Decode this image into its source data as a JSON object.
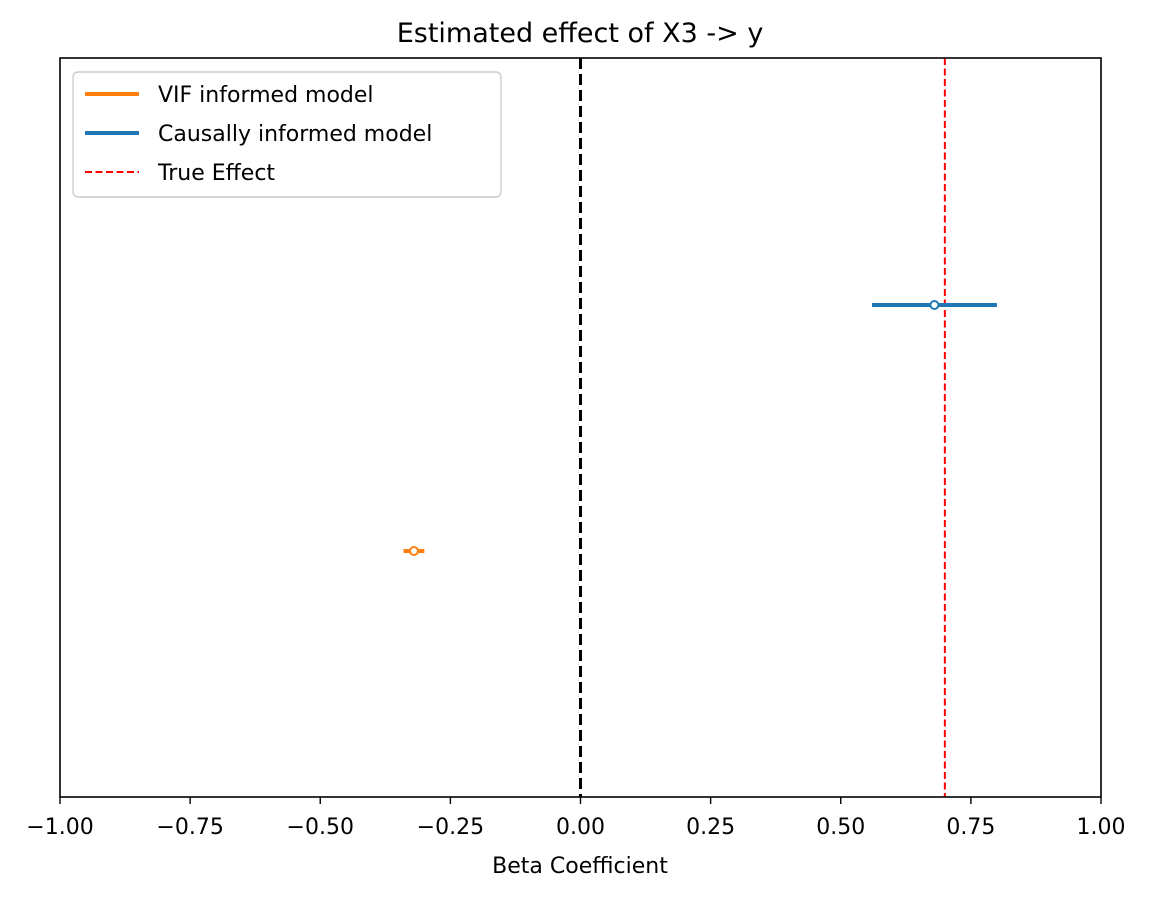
{
  "chart_data": {
    "type": "forest",
    "title": "Estimated effect of X3 -> y",
    "xlabel": "Beta Coefficient",
    "ylabel": "",
    "xlim": [
      -1.0,
      1.0
    ],
    "xticks": [
      -1.0,
      -0.75,
      -0.5,
      -0.25,
      0.0,
      0.25,
      0.5,
      0.75,
      1.0
    ],
    "xtick_labels": [
      "−1.00",
      "−0.75",
      "−0.50",
      "−0.25",
      "0.00",
      "0.25",
      "0.50",
      "0.75",
      "1.00"
    ],
    "y_ticks_shown": false,
    "grid": false,
    "series": [
      {
        "name": "VIF informed model",
        "color": "#ff7f0e",
        "estimate": -0.32,
        "ci": [
          -0.34,
          -0.3
        ],
        "row": 0
      },
      {
        "name": "Causally informed model",
        "color": "#1f77b4",
        "estimate": 0.68,
        "ci": [
          0.56,
          0.8
        ],
        "row": 1
      }
    ],
    "reference_lines": [
      {
        "name": "zero",
        "x": 0.0,
        "color": "#000000",
        "style": "dashed"
      },
      {
        "name": "True Effect",
        "x": 0.7,
        "color": "#ff0000",
        "style": "dashed"
      }
    ],
    "legend": {
      "position": "upper-left",
      "entries": [
        "VIF informed model",
        "Causally informed model",
        "True Effect"
      ]
    }
  }
}
